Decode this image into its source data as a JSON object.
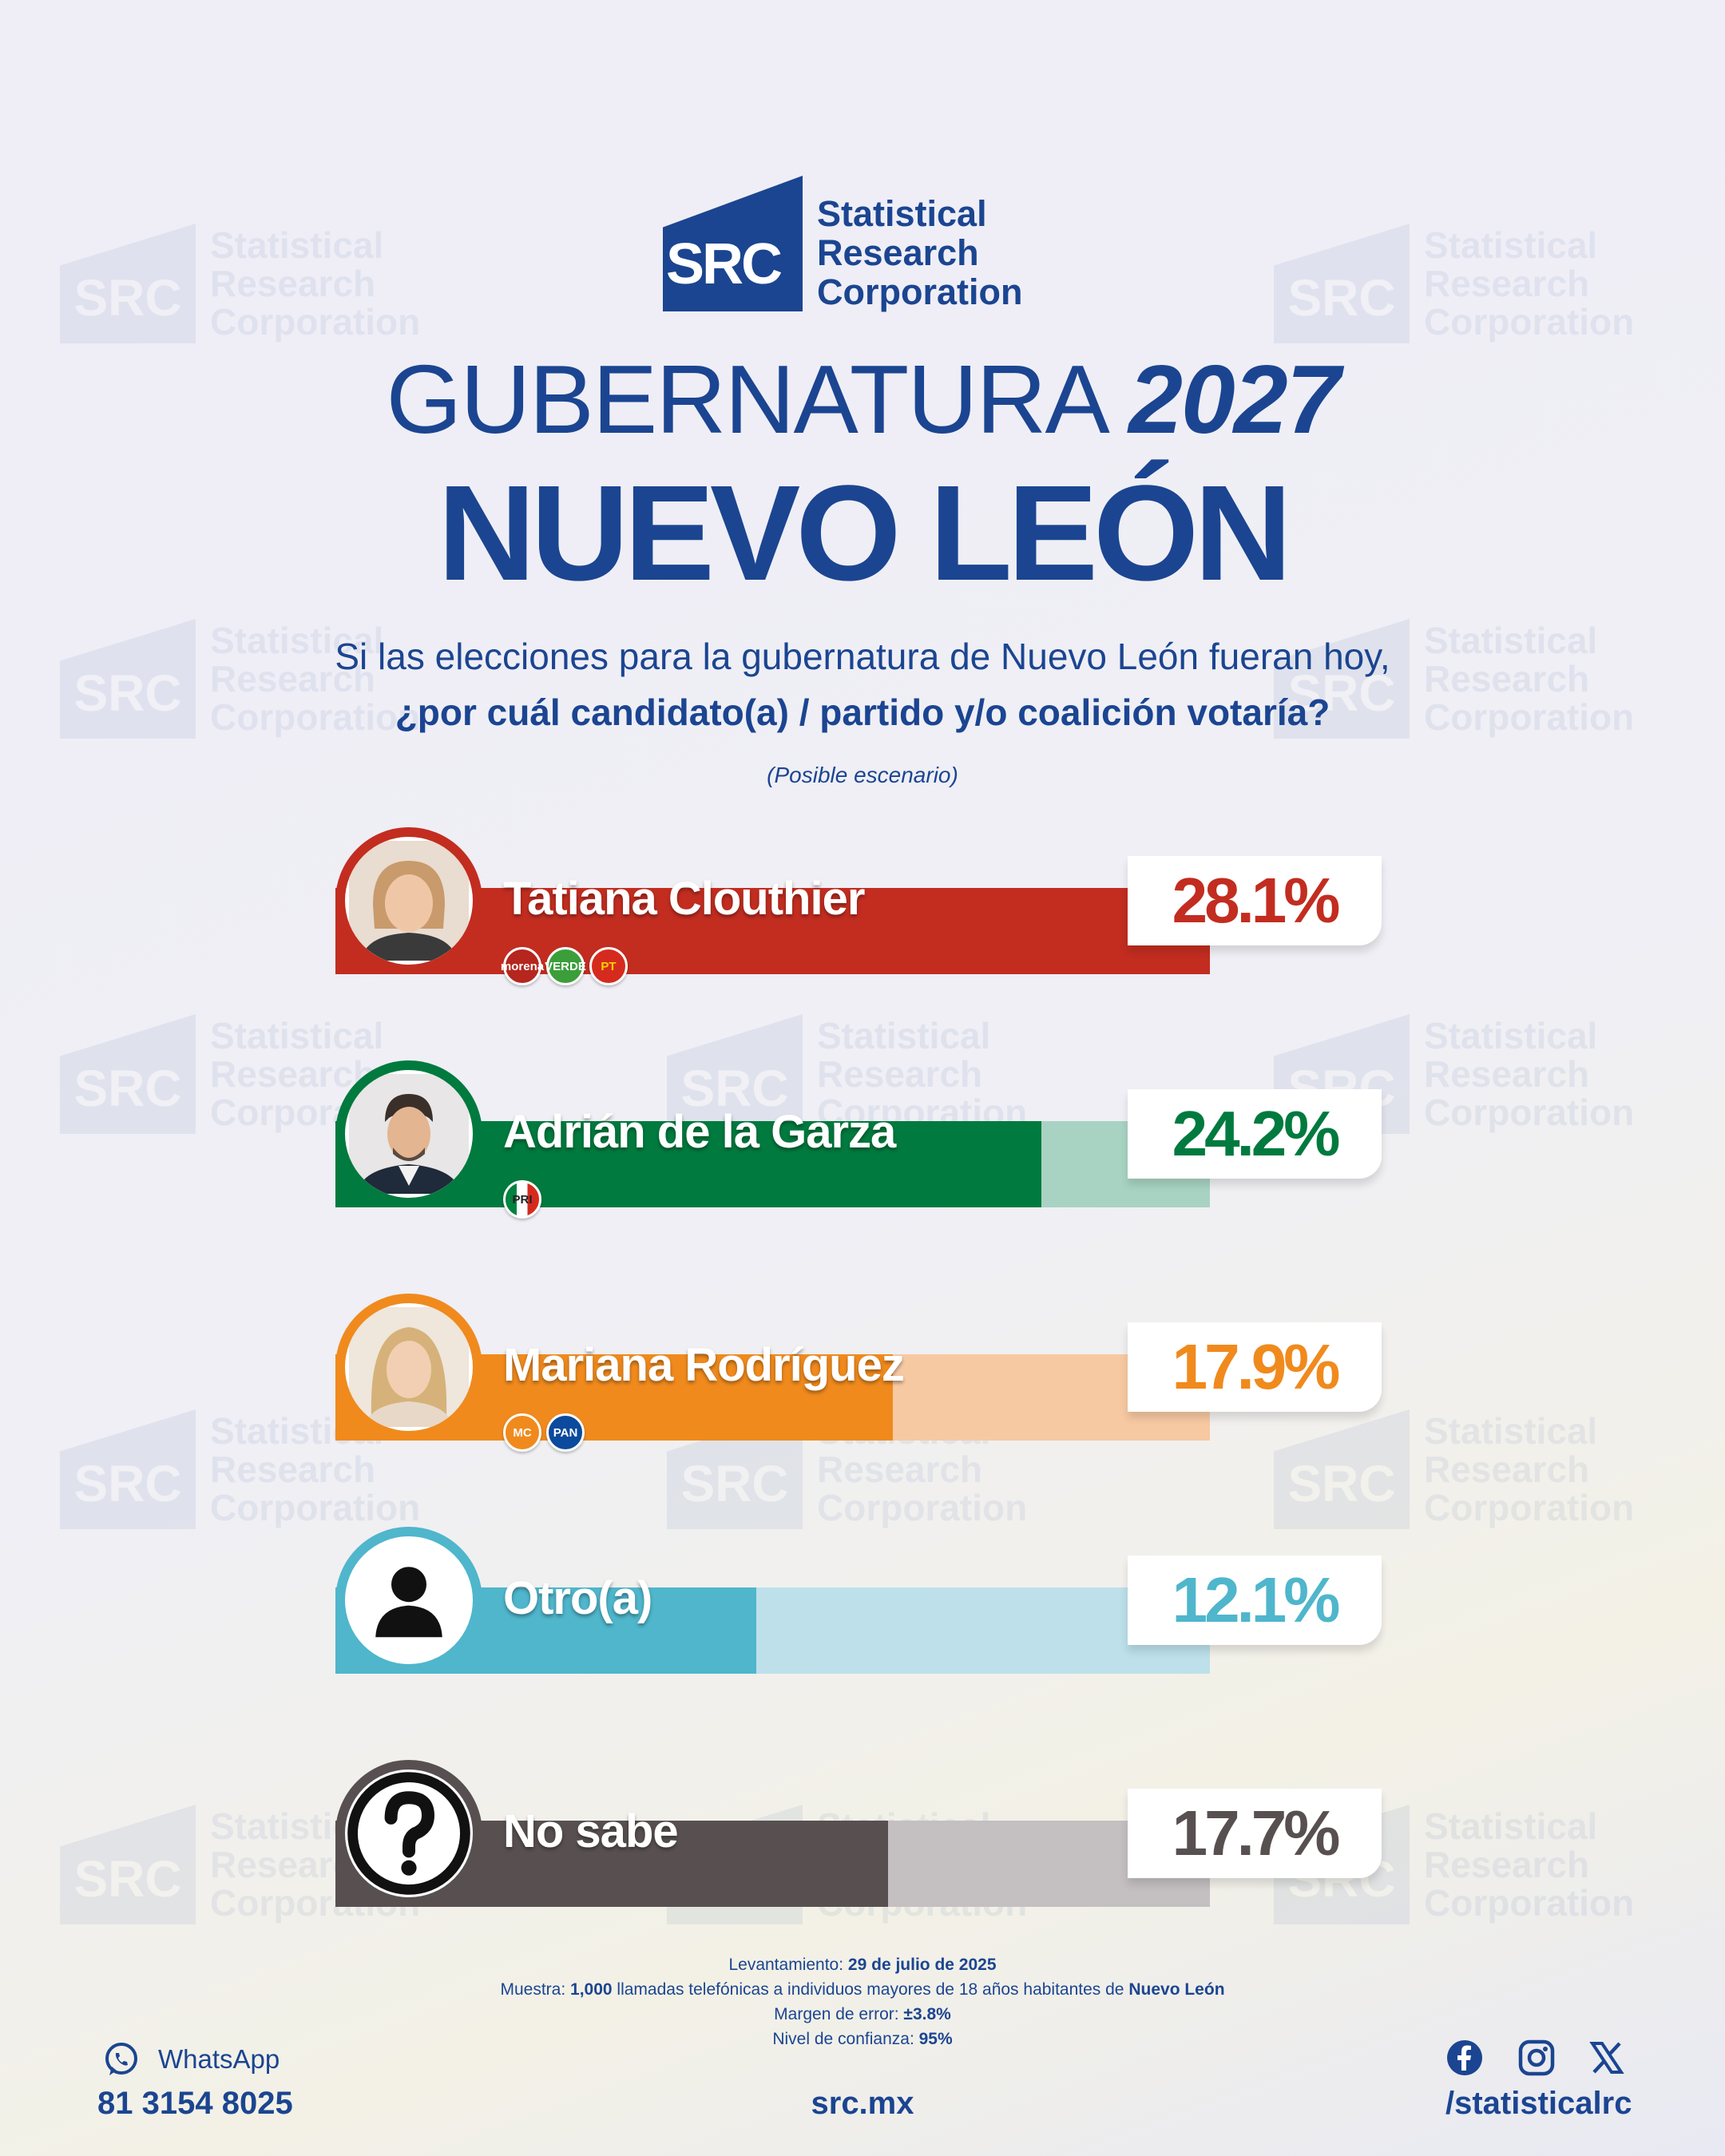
{
  "brand": {
    "mark": "SRC",
    "line1": "Statistical",
    "line2": "Research",
    "line3": "Corporation"
  },
  "header": {
    "title_light": "GUBERNATURA",
    "title_year": "2027",
    "subtitle": "NUEVO LEÓN",
    "question_line1": "Si las elecciones para la gubernatura de Nuevo León fueran hoy,",
    "question_line2": "¿por cuál candidato(a) / partido y/o coalición votaría?",
    "note": "(Posible escenario)"
  },
  "chart_data": {
    "type": "bar",
    "orientation": "horizontal",
    "categories": [
      "Tatiana Clouthier",
      "Adrián de la Garza",
      "Mariana Rodríguez",
      "Otro(a)",
      "No sabe"
    ],
    "values": [
      28.1,
      24.2,
      17.9,
      12.1,
      17.7
    ],
    "value_labels": [
      "28.1%",
      "24.2%",
      "17.9%",
      "12.1%",
      "17.7%"
    ],
    "unit": "%",
    "colors": [
      "#c22d20",
      "#007a3e",
      "#f08a1d",
      "#4fb6cc",
      "#585050"
    ],
    "track_colors": [
      "#c22d20",
      "#a8d3c3",
      "#f7c9a2",
      "#bde0ea",
      "#c4bfc1"
    ],
    "parties": [
      [
        "morena",
        "VERDE",
        "PT"
      ],
      [
        "PRI"
      ],
      [
        "MC",
        "PAN"
      ],
      [],
      []
    ],
    "ylim": [
      0,
      30
    ]
  },
  "footer": {
    "levantamiento_label": "Levantamiento:",
    "levantamiento_value": "29 de julio de 2025",
    "muestra_label": "Muestra:",
    "muestra_count": "1,000",
    "muestra_text": "llamadas telefónicas a individuos mayores de 18 años habitantes de",
    "muestra_place": "Nuevo León",
    "margen_label": "Margen de error:",
    "margen_value": "±3.8%",
    "nivel_label": "Nivel de confianza:",
    "nivel_value": "95%",
    "whatsapp_label": "WhatsApp",
    "phone": "81 3154 8025",
    "site": "src.mx",
    "handle": "/statisticalrc"
  },
  "icons": [
    "whatsapp-icon",
    "facebook-icon",
    "instagram-icon",
    "x-icon",
    "person-icon",
    "question-icon"
  ]
}
